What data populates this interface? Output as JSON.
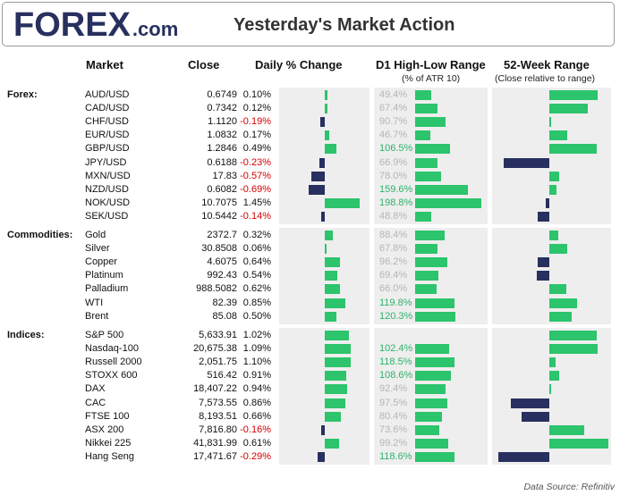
{
  "header": {
    "logo_main": "FOREX",
    "logo_suffix": ".com",
    "title": "Yesterday's Market Action"
  },
  "columns": {
    "market": "Market",
    "close": "Close",
    "daily": "Daily % Change",
    "d1": "D1 High-Low Range",
    "d1_sub": "(% of ATR 10)",
    "w52": "52-Week Range",
    "w52_sub": "(Close relative to range)"
  },
  "source": "Data Source: Refinitiv",
  "colors": {
    "positive_bar": "#2cc46c",
    "negative_bar": "#27305e",
    "negative_text": "#d40000",
    "highlight_range_text": "#2cb36a",
    "muted_range_text": "#b5b5b5",
    "panel_bg": "#eeeeee",
    "brand_navy": "#27305e",
    "brand_green": "#2cb36a"
  },
  "chart_data": {
    "type": "table",
    "scales": {
      "daily_pct_max": 1.5,
      "d1_range_max": 200,
      "w52_max": 0.75
    },
    "groups": [
      {
        "name": "Forex:",
        "rows": [
          {
            "market": "AUD/USD",
            "close": "0.6749",
            "daily": "0.10%",
            "daily_value": 0.1,
            "d1": "49.4%",
            "d1_value": 49.4,
            "w52_value": 0.72
          },
          {
            "market": "CAD/USD",
            "close": "0.7342",
            "daily": "0.12%",
            "daily_value": 0.12,
            "d1": "67.4%",
            "d1_value": 67.4,
            "w52_value": 0.58
          },
          {
            "market": "CHF/USD",
            "close": "1.1120",
            "daily": "-0.19%",
            "daily_value": -0.19,
            "d1": "90.7%",
            "d1_value": 90.7,
            "w52_value": 0.02
          },
          {
            "market": "EUR/USD",
            "close": "1.0832",
            "daily": "0.17%",
            "daily_value": 0.17,
            "d1": "46.7%",
            "d1_value": 46.7,
            "w52_value": 0.27
          },
          {
            "market": "GBP/USD",
            "close": "1.2846",
            "daily": "0.49%",
            "daily_value": 0.49,
            "d1": "106.5%",
            "d1_value": 106.5,
            "w52_value": 0.71
          },
          {
            "market": "JPY/USD",
            "close": "0.6188",
            "daily": "-0.23%",
            "daily_value": -0.23,
            "d1": "66.9%",
            "d1_value": 66.9,
            "w52_value": -0.68
          },
          {
            "market": "MXN/USD",
            "close": "17.83",
            "daily": "-0.57%",
            "daily_value": -0.57,
            "d1": "78.0%",
            "d1_value": 78.0,
            "w52_value": 0.14
          },
          {
            "market": "NZD/USD",
            "close": "0.6082",
            "daily": "-0.69%",
            "daily_value": -0.69,
            "d1": "159.6%",
            "d1_value": 159.6,
            "w52_value": 0.11
          },
          {
            "market": "NOK/USD",
            "close": "10.7075",
            "daily": "1.45%",
            "daily_value": 1.45,
            "d1": "198.8%",
            "d1_value": 198.8,
            "w52_value": -0.06
          },
          {
            "market": "SEK/USD",
            "close": "10.5442",
            "daily": "-0.14%",
            "daily_value": -0.14,
            "d1": "48.8%",
            "d1_value": 48.8,
            "w52_value": -0.17
          }
        ]
      },
      {
        "name": "Commodities:",
        "rows": [
          {
            "market": "Gold",
            "close": "2372.7",
            "daily": "0.32%",
            "daily_value": 0.32,
            "d1": "88.4%",
            "d1_value": 88.4,
            "w52_value": 0.13
          },
          {
            "market": "Silver",
            "close": "30.8508",
            "daily": "0.06%",
            "daily_value": 0.06,
            "d1": "67.8%",
            "d1_value": 67.8,
            "w52_value": 0.27
          },
          {
            "market": "Copper",
            "close": "4.6075",
            "daily": "0.64%",
            "daily_value": 0.64,
            "d1": "96.2%",
            "d1_value": 96.2,
            "w52_value": -0.18
          },
          {
            "market": "Platinum",
            "close": "992.43",
            "daily": "0.54%",
            "daily_value": 0.54,
            "d1": "69.4%",
            "d1_value": 69.4,
            "w52_value": -0.19
          },
          {
            "market": "Palladium",
            "close": "988.5082",
            "daily": "0.62%",
            "daily_value": 0.62,
            "d1": "66.0%",
            "d1_value": 66.0,
            "w52_value": 0.26
          },
          {
            "market": "WTI",
            "close": "82.39",
            "daily": "0.85%",
            "daily_value": 0.85,
            "d1": "119.8%",
            "d1_value": 119.8,
            "w52_value": 0.42
          },
          {
            "market": "Brent",
            "close": "85.08",
            "daily": "0.50%",
            "daily_value": 0.5,
            "d1": "120.3%",
            "d1_value": 120.3,
            "w52_value": 0.33
          }
        ]
      },
      {
        "name": "Indices:",
        "rows": [
          {
            "market": "S&P 500",
            "close": "5,633.91",
            "daily": "1.02%",
            "daily_value": 1.02,
            "d1": "",
            "d1_value": 0,
            "w52_value": 0.71
          },
          {
            "market": "Nasdaq-100",
            "close": "20,675.38",
            "daily": "1.09%",
            "daily_value": 1.09,
            "d1": "102.4%",
            "d1_value": 102.4,
            "w52_value": 0.72
          },
          {
            "market": "Russell 2000",
            "close": "2,051.75",
            "daily": "1.10%",
            "daily_value": 1.1,
            "d1": "118.5%",
            "d1_value": 118.5,
            "w52_value": 0.09
          },
          {
            "market": "STOXX 600",
            "close": "516.42",
            "daily": "0.91%",
            "daily_value": 0.91,
            "d1": "108.6%",
            "d1_value": 108.6,
            "w52_value": 0.14
          },
          {
            "market": "DAX",
            "close": "18,407.22",
            "daily": "0.94%",
            "daily_value": 0.94,
            "d1": "92.4%",
            "d1_value": 92.4,
            "w52_value": 0.03
          },
          {
            "market": "CAC",
            "close": "7,573.55",
            "daily": "0.86%",
            "daily_value": 0.86,
            "d1": "97.5%",
            "d1_value": 97.5,
            "w52_value": -0.58
          },
          {
            "market": "FTSE 100",
            "close": "8,193.51",
            "daily": "0.66%",
            "daily_value": 0.66,
            "d1": "80.4%",
            "d1_value": 80.4,
            "w52_value": -0.42
          },
          {
            "market": "ASX 200",
            "close": "7,816.80",
            "daily": "-0.16%",
            "daily_value": -0.16,
            "d1": "73.6%",
            "d1_value": 73.6,
            "w52_value": 0.52
          },
          {
            "market": "Nikkei 225",
            "close": "41,831.99",
            "daily": "0.61%",
            "daily_value": 0.61,
            "d1": "99.2%",
            "d1_value": 99.2,
            "w52_value": 0.88
          },
          {
            "market": "Hang Seng",
            "close": "17,471.67",
            "daily": "-0.29%",
            "daily_value": -0.29,
            "d1": "118.6%",
            "d1_value": 118.6,
            "w52_value": -0.76
          }
        ]
      }
    ]
  }
}
